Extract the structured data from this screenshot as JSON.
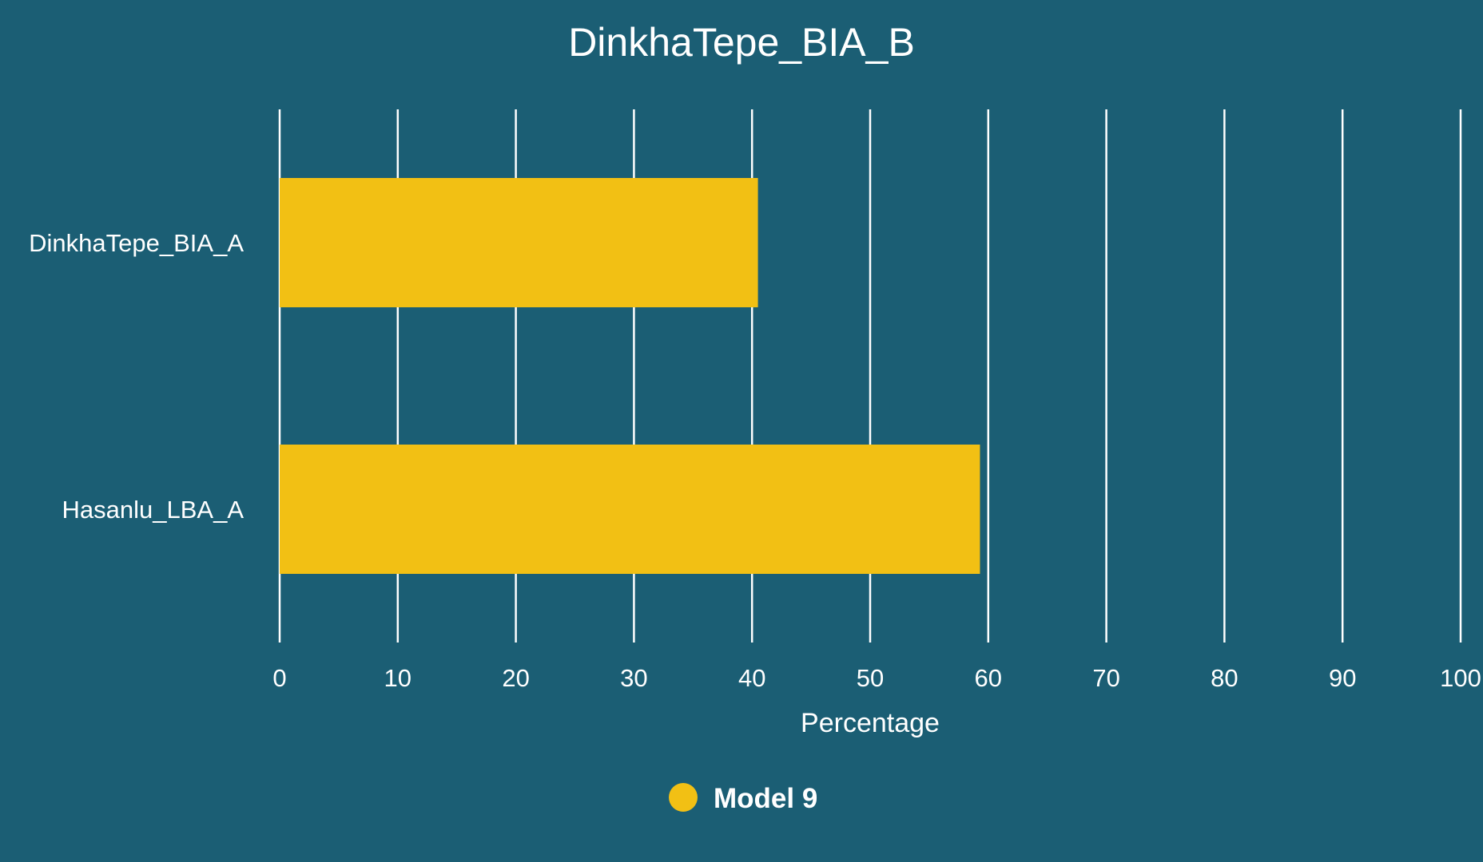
{
  "chart_data": {
    "type": "bar",
    "orientation": "horizontal",
    "title": "DinkhaTepe_BIA_B",
    "categories": [
      "DinkhaTepe_BIA_A",
      "Hasanlu_LBA_A"
    ],
    "series": [
      {
        "name": "Model 9",
        "values": [
          40.5,
          59.3
        ],
        "color": "#f2c014"
      }
    ],
    "xlabel": "Percentage",
    "ylabel": "",
    "xlim": [
      0,
      100
    ],
    "xticks": [
      0,
      10,
      20,
      30,
      40,
      50,
      60,
      70,
      80,
      90,
      100
    ],
    "grid": true,
    "legend_position": "bottom",
    "colors": {
      "background": "#1b5e74",
      "text": "#ffffff",
      "grid": "#ffffff"
    }
  }
}
